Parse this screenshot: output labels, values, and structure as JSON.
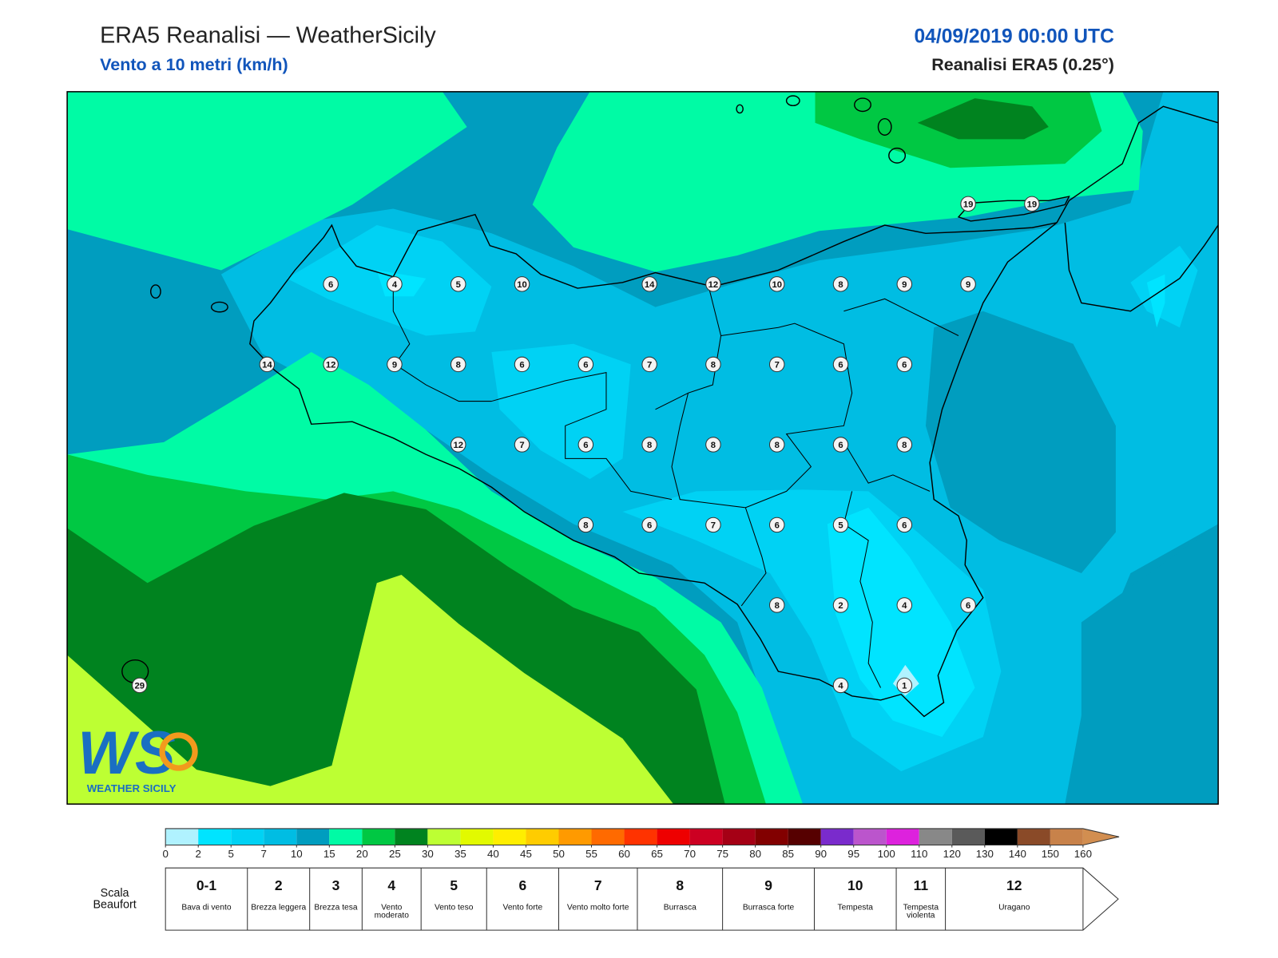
{
  "header": {
    "title": "ERA5 Reanalisi — WeatherSicily",
    "subtitle": "Vento a 10 metri (km/h)",
    "date": "04/09/2019 00:00 UTC",
    "source": "Reanalisi ERA5 (0.25°)"
  },
  "logo": {
    "text": "WS",
    "subtitle": "WEATHER SICILY"
  },
  "stations": [
    19,
    19,
    6,
    4,
    5,
    10,
    14,
    12,
    10,
    8,
    9,
    9,
    14,
    12,
    9,
    8,
    6,
    6,
    7,
    8,
    7,
    6,
    6,
    12,
    7,
    6,
    8,
    8,
    8,
    6,
    8,
    8,
    6,
    7,
    6,
    5,
    6,
    8,
    2,
    4,
    6,
    4,
    1,
    29
  ],
  "colorbar": {
    "ticks": [
      0,
      2,
      5,
      7,
      10,
      15,
      20,
      25,
      30,
      35,
      40,
      45,
      50,
      55,
      60,
      65,
      70,
      75,
      80,
      85,
      90,
      95,
      100,
      110,
      120,
      130,
      140,
      150,
      160
    ],
    "colors": [
      "#b0f2ff",
      "#00e4ff",
      "#00d2f4",
      "#00bde3",
      "#009dbf",
      "#00fba5",
      "#00c843",
      "#00831f",
      "#bdff33",
      "#e2fa00",
      "#ffee00",
      "#ffcc00",
      "#ff9a00",
      "#ff6a00",
      "#ff3300",
      "#ee0000",
      "#cc0022",
      "#a50015",
      "#820000",
      "#560000",
      "#7a2bcc",
      "#bb55cc",
      "#dd22dd",
      "#888888",
      "#5a5a5a",
      "#000000",
      "#8a4a28",
      "#c8824a"
    ],
    "extend_color": "#d28e50"
  },
  "beaufort": {
    "label": "Scala Beaufort",
    "levels": [
      {
        "force": "0-1",
        "name": "Bava di vento"
      },
      {
        "force": 2,
        "name": "Brezza leggera"
      },
      {
        "force": 3,
        "name": "Brezza tesa"
      },
      {
        "force": 4,
        "name": "Vento moderato"
      },
      {
        "force": 5,
        "name": "Vento teso"
      },
      {
        "force": 6,
        "name": "Vento forte"
      },
      {
        "force": 7,
        "name": "Vento molto forte"
      },
      {
        "force": 8,
        "name": "Burrasca"
      },
      {
        "force": 9,
        "name": "Burrasca forte"
      },
      {
        "force": 10,
        "name": "Tempesta"
      },
      {
        "force": 11,
        "name": "Tempesta violenta"
      },
      {
        "force": 12,
        "name": "Uragano"
      }
    ]
  }
}
